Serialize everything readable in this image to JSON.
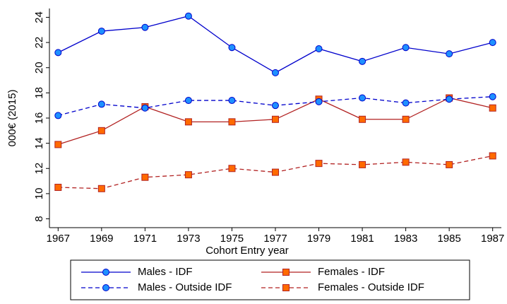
{
  "chart_data": {
    "type": "line",
    "x_label": "Cohort Entry year",
    "y_label": "000€ (2015)",
    "x": [
      1967,
      1969,
      1971,
      1973,
      1975,
      1977,
      1979,
      1981,
      1983,
      1985,
      1987
    ],
    "xlim": [
      1966.6,
      1987.4
    ],
    "xticks": [
      1967,
      1969,
      1971,
      1973,
      1975,
      1977,
      1979,
      1981,
      1983,
      1985,
      1987
    ],
    "ylim": [
      7.3,
      24.7
    ],
    "yticks": [
      8,
      10,
      12,
      14,
      16,
      18,
      20,
      22,
      24
    ],
    "grid": false,
    "series": [
      {
        "name": "Males - IDF",
        "color": "#0000cc",
        "marker_color": "#1e90ff",
        "marker": "circle",
        "dashed": false,
        "values": [
          21.2,
          22.9,
          23.2,
          24.1,
          21.6,
          19.6,
          21.5,
          20.5,
          21.6,
          21.1,
          22.0
        ]
      },
      {
        "name": "Females - IDF",
        "color": "#b22222",
        "marker_color": "#ff6a00",
        "marker": "square",
        "dashed": false,
        "values": [
          13.9,
          15.0,
          16.9,
          15.7,
          15.7,
          15.9,
          17.5,
          15.9,
          15.9,
          17.6,
          16.8
        ]
      },
      {
        "name": "Males - Outside IDF",
        "color": "#0000cc",
        "marker_color": "#1e90ff",
        "marker": "circle",
        "dashed": true,
        "values": [
          16.2,
          17.1,
          16.8,
          17.4,
          17.4,
          17.0,
          17.3,
          17.6,
          17.2,
          17.5,
          17.7
        ]
      },
      {
        "name": "Females - Outside IDF",
        "color": "#b22222",
        "marker_color": "#ff6a00",
        "marker": "square",
        "dashed": true,
        "values": [
          10.5,
          10.4,
          11.3,
          11.5,
          12.0,
          11.7,
          12.4,
          12.3,
          12.5,
          12.3,
          13.0
        ]
      }
    ]
  }
}
